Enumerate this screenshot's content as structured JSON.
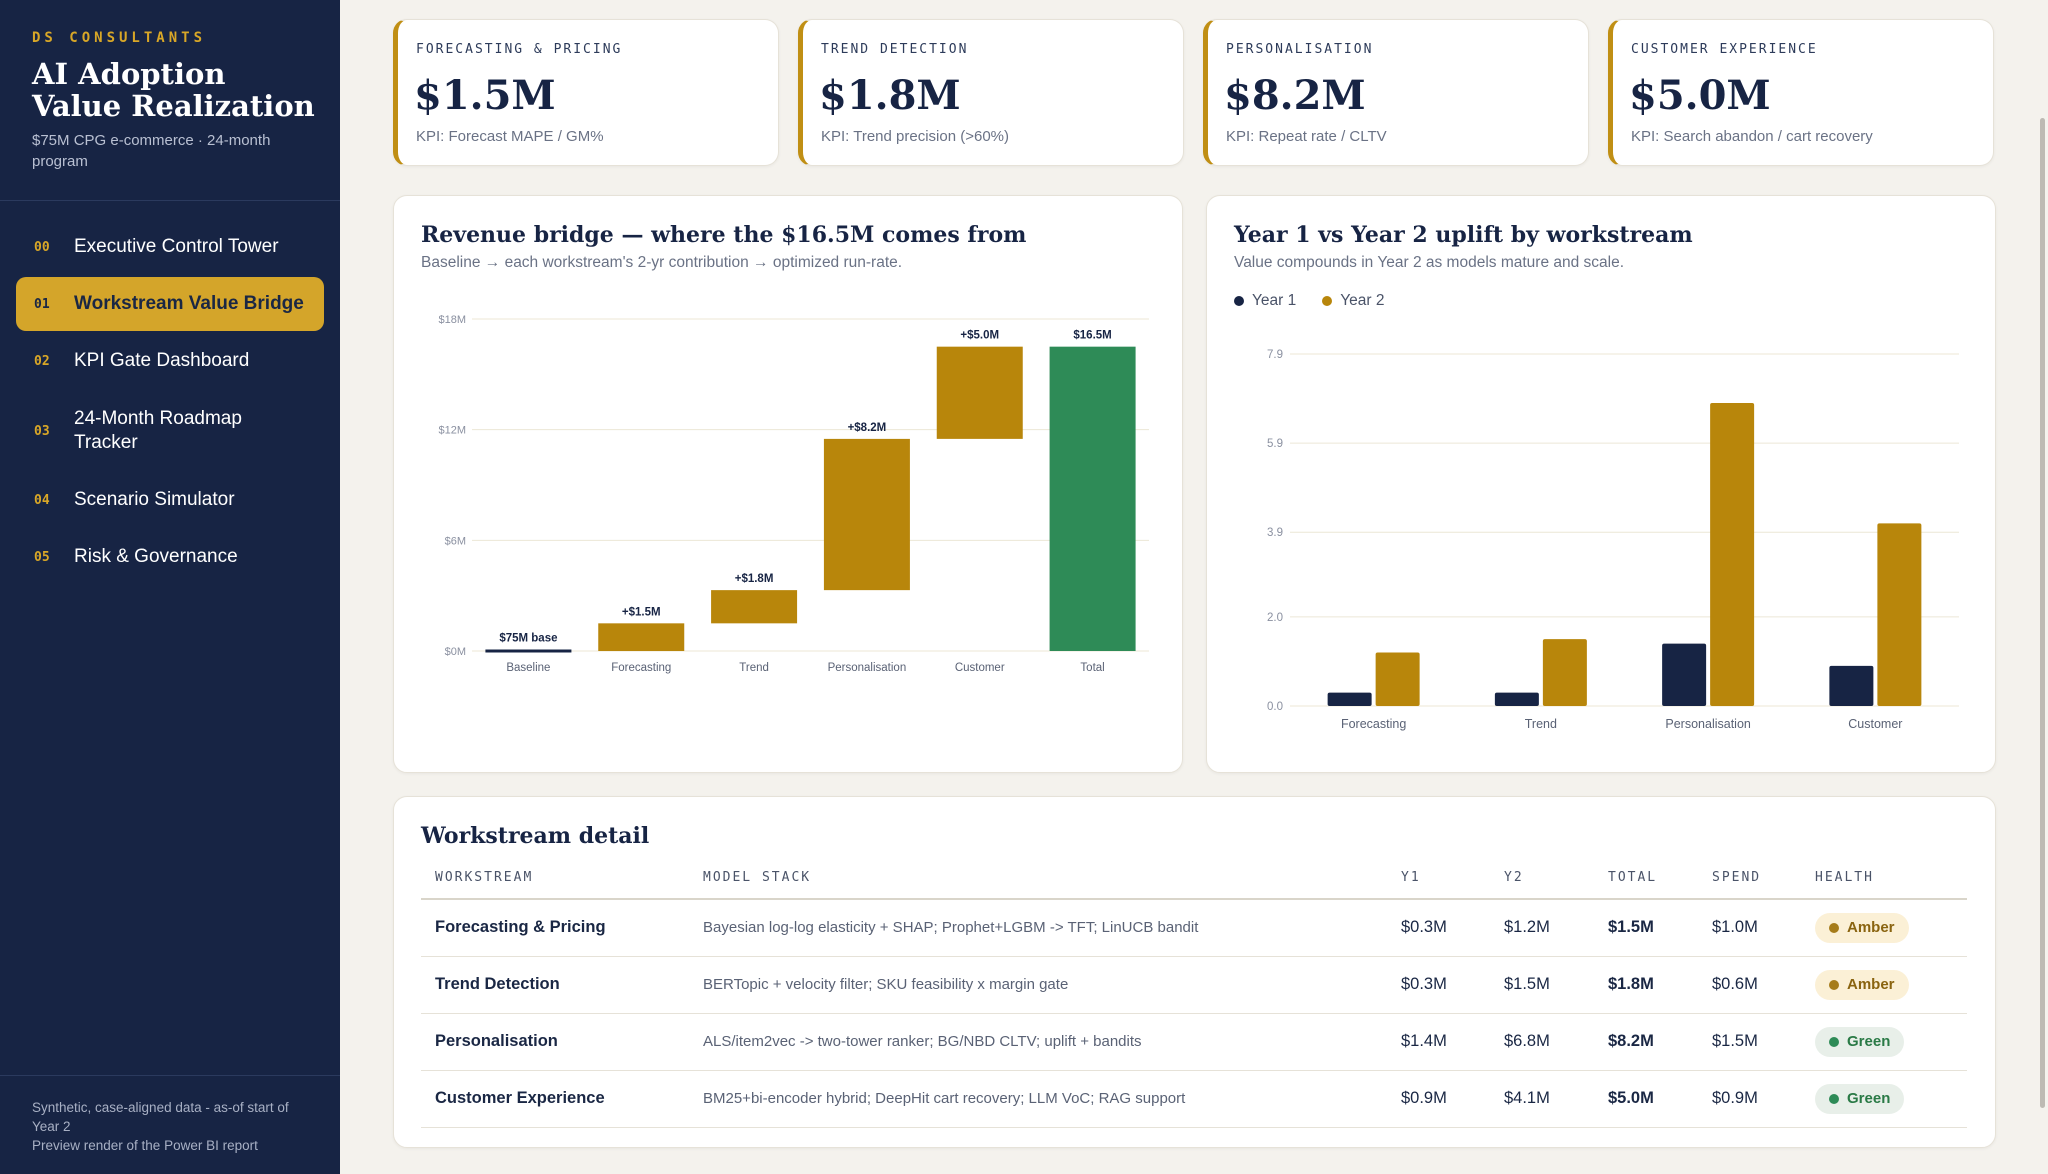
{
  "sidebar": {
    "kicker": "DS CONSULTANTS",
    "title": "AI Adoption Value Realization",
    "subtitle": "$75M CPG e-commerce · 24-month program",
    "items": [
      {
        "num": "00",
        "label": "Executive Control Tower"
      },
      {
        "num": "01",
        "label": "Workstream Value Bridge"
      },
      {
        "num": "02",
        "label": "KPI Gate Dashboard"
      },
      {
        "num": "03",
        "label": "24-Month Roadmap Tracker"
      },
      {
        "num": "04",
        "label": "Scenario Simulator"
      },
      {
        "num": "05",
        "label": "Risk & Governance"
      }
    ],
    "active_index": 1,
    "footer_line1": "Synthetic, case-aligned data - as-of start of Year 2",
    "footer_line2": "Preview render of the Power BI report"
  },
  "kpis": [
    {
      "label": "FORECASTING & PRICING",
      "value": "$1.5M",
      "sub": "KPI: Forecast MAPE / GM%"
    },
    {
      "label": "TREND DETECTION",
      "value": "$1.8M",
      "sub": "KPI: Trend precision (>60%)"
    },
    {
      "label": "PERSONALISATION",
      "value": "$8.2M",
      "sub": "KPI: Repeat rate / CLTV"
    },
    {
      "label": "CUSTOMER EXPERIENCE",
      "value": "$5.0M",
      "sub": "KPI: Search abandon / cart recovery"
    }
  ],
  "bridge": {
    "title": "Revenue bridge — where the $16.5M comes from",
    "subtitle": "Baseline → each workstream's 2-yr contribution → optimized run-rate."
  },
  "uplift": {
    "title": "Year 1 vs Year 2 uplift by workstream",
    "subtitle": "Value compounds in Year 2 as models mature and scale.",
    "legend": [
      "Year 1",
      "Year 2"
    ]
  },
  "chart_data": [
    {
      "type": "bar",
      "subtype": "waterfall",
      "title": "Revenue bridge — where the $16.5M comes from",
      "categories": [
        "Baseline",
        "Forecasting",
        "Trend",
        "Personalisation",
        "Customer",
        "Total"
      ],
      "values": [
        0,
        1.5,
        1.8,
        8.2,
        5.0,
        16.5
      ],
      "labels": [
        "$75M base",
        "+$1.5M",
        "+$1.8M",
        "+$8.2M",
        "+$5.0M",
        "$16.5M"
      ],
      "yticks": [
        "$0M",
        "$6M",
        "$12M",
        "$18M"
      ],
      "ylim": [
        0,
        18
      ],
      "colors": {
        "step": "#b8860b",
        "total": "#2e8b57",
        "base": "#172444"
      },
      "grid": true
    },
    {
      "type": "bar",
      "title": "Year 1 vs Year 2 uplift by workstream",
      "categories": [
        "Forecasting",
        "Trend",
        "Personalisation",
        "Customer"
      ],
      "series": [
        {
          "name": "Year 1",
          "values": [
            0.3,
            0.3,
            1.4,
            0.9
          ],
          "color": "#172444"
        },
        {
          "name": "Year 2",
          "values": [
            1.2,
            1.5,
            6.8,
            4.1
          ],
          "color": "#b8860b"
        }
      ],
      "yticks": [
        "0.0",
        "2.0",
        "3.9",
        "5.9",
        "7.9"
      ],
      "ylim": [
        0,
        7.9
      ],
      "legend": "top-left",
      "grid": true
    }
  ],
  "table": {
    "title": "Workstream detail",
    "columns": [
      "WORKSTREAM",
      "MODEL STACK",
      "Y1",
      "Y2",
      "TOTAL",
      "SPEND",
      "HEALTH"
    ],
    "rows": [
      {
        "workstream": "Forecasting & Pricing",
        "stack": "Bayesian log-log elasticity + SHAP; Prophet+LGBM -> TFT; LinUCB bandit",
        "y1": "$0.3M",
        "y2": "$1.2M",
        "total": "$1.5M",
        "spend": "$1.0M",
        "health": "Amber"
      },
      {
        "workstream": "Trend Detection",
        "stack": "BERTopic + velocity filter; SKU feasibility x margin gate",
        "y1": "$0.3M",
        "y2": "$1.5M",
        "total": "$1.8M",
        "spend": "$0.6M",
        "health": "Amber"
      },
      {
        "workstream": "Personalisation",
        "stack": "ALS/item2vec -> two-tower ranker; BG/NBD CLTV; uplift + bandits",
        "y1": "$1.4M",
        "y2": "$6.8M",
        "total": "$8.2M",
        "spend": "$1.5M",
        "health": "Green"
      },
      {
        "workstream": "Customer Experience",
        "stack": "BM25+bi-encoder hybrid; DeepHit cart recovery; LLM VoC; RAG support",
        "y1": "$0.9M",
        "y2": "$4.1M",
        "total": "$5.0M",
        "spend": "$0.9M",
        "health": "Green"
      }
    ]
  },
  "colors": {
    "navy": "#172444",
    "gold": "#b8860b",
    "green": "#2e8b57",
    "amber_dot": "#a67c1a",
    "green_dot": "#2e8b57"
  }
}
